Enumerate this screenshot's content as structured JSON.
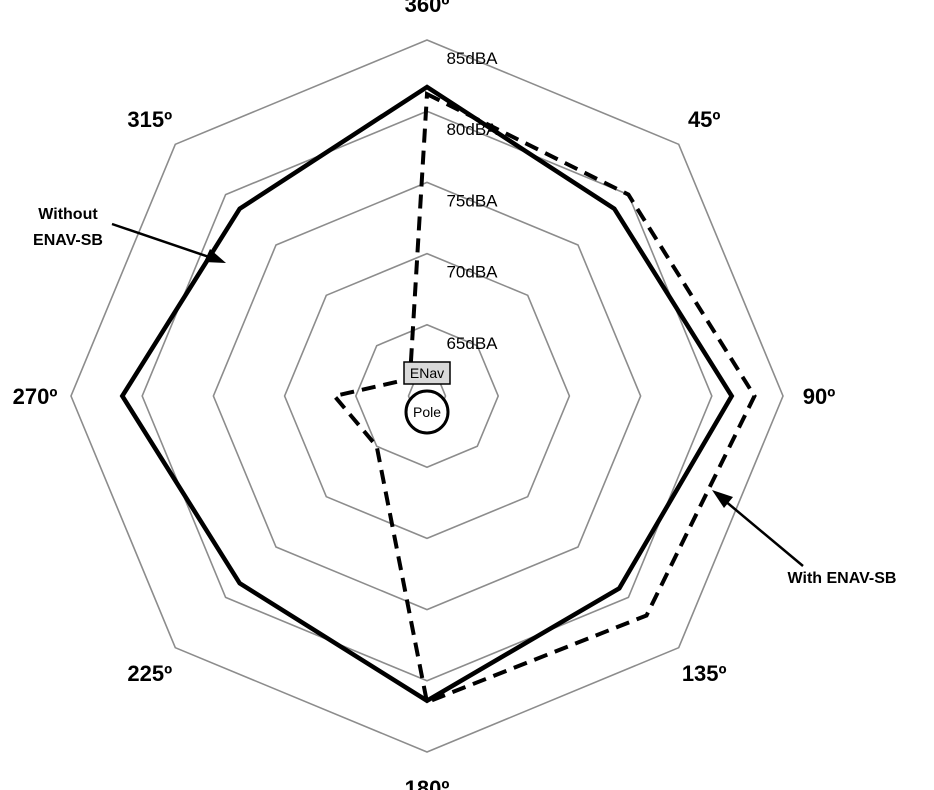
{
  "chart_data": {
    "type": "radar",
    "angles": [
      "360º",
      "45º",
      "90º",
      "135º",
      "180º",
      "225º",
      "270º",
      "315º"
    ],
    "rings": [
      "65dBA",
      "70dBA",
      "75dBA",
      "80dBA",
      "85dBA"
    ],
    "ring_values": [
      65,
      70,
      75,
      80,
      85
    ],
    "rlim": [
      60,
      85
    ],
    "series": [
      {
        "name": "Without ENAV-SB",
        "style": "solid",
        "values": [
          81.7,
          78.6,
          81.4,
          79.1,
          81.4,
          78.6,
          81.4,
          78.6
        ]
      },
      {
        "name": "With ENAV-SB",
        "style": "dashed",
        "values": [
          81.2,
          80.0,
          83.0,
          81.8,
          81.5,
          65.0,
          66.5,
          61.7
        ]
      }
    ],
    "annotations": [
      {
        "text_lines": [
          "Without",
          "ENAV-SB"
        ]
      },
      {
        "text_lines": [
          "With ENAV-SB"
        ]
      }
    ],
    "center_labels": {
      "enav": "ENav",
      "pole": "Pole"
    }
  }
}
